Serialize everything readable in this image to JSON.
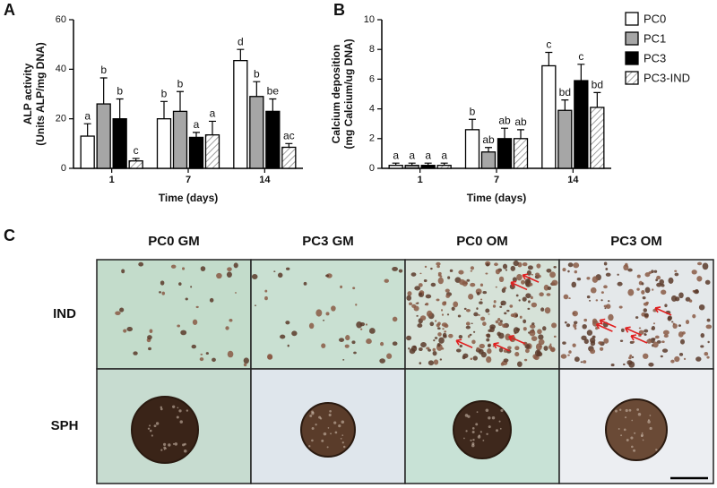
{
  "chart_data": [
    {
      "type": "bar",
      "panel_label": "A",
      "ylabel": [
        "ALP activity",
        "(Units ALP/mg DNA)"
      ],
      "xlabel": "Time (days)",
      "categories": [
        "1",
        "7",
        "14"
      ],
      "ylim": [
        0,
        60
      ],
      "yticks": [
        0,
        20,
        40,
        60
      ],
      "series": [
        {
          "color": "#ffffff",
          "values": [
            13,
            20,
            43.5
          ],
          "errors": [
            5,
            7,
            4.5
          ],
          "labels": [
            "a",
            "b",
            "d"
          ]
        },
        {
          "color": "#a6a6a6",
          "values": [
            26,
            23,
            29
          ],
          "errors": [
            10.5,
            8,
            6
          ],
          "labels": [
            "b",
            "b",
            "b"
          ]
        },
        {
          "color": "#000000",
          "values": [
            20,
            12.5,
            23
          ],
          "errors": [
            8,
            2,
            5
          ],
          "labels": [
            "b",
            "a",
            "be"
          ]
        },
        {
          "color": "#ffffff",
          "hatch": true,
          "values": [
            3,
            13.5,
            8.5
          ],
          "errors": [
            1,
            5.5,
            1.5
          ],
          "labels": [
            "c",
            "a",
            "ac"
          ]
        }
      ]
    },
    {
      "type": "bar",
      "panel_label": "B",
      "ylabel": [
        "Calcium deposition",
        "(mg Calcium/ug DNA)"
      ],
      "xlabel": "Time (days)",
      "categories": [
        "1",
        "7",
        "14"
      ],
      "ylim": [
        0,
        10
      ],
      "yticks": [
        0,
        2,
        4,
        6,
        8,
        10
      ],
      "legend": "right",
      "series": [
        {
          "name": "PC0",
          "color": "#ffffff",
          "values": [
            0.2,
            2.6,
            6.9
          ],
          "errors": [
            0.15,
            0.7,
            0.9
          ],
          "labels": [
            "a",
            "b",
            "c"
          ]
        },
        {
          "name": "PC1",
          "color": "#a6a6a6",
          "values": [
            0.2,
            1.1,
            3.9
          ],
          "errors": [
            0.15,
            0.3,
            0.7
          ],
          "labels": [
            "a",
            "ab",
            "bd"
          ]
        },
        {
          "name": "PC3",
          "color": "#000000",
          "values": [
            0.2,
            2.0,
            5.9
          ],
          "errors": [
            0.15,
            0.7,
            1.1
          ],
          "labels": [
            "a",
            "ab",
            "c"
          ]
        },
        {
          "name": "PC3-IND",
          "color": "#ffffff",
          "hatch": true,
          "values": [
            0.2,
            2.0,
            4.1
          ],
          "errors": [
            0.15,
            0.6,
            1.0
          ],
          "labels": [
            "a",
            "ab",
            "bd"
          ]
        }
      ]
    }
  ],
  "panel_c": {
    "label": "C",
    "columns": [
      "PC0 GM",
      "PC3 GM",
      "PC0 OM",
      "PC3 OM"
    ],
    "rows": [
      "IND",
      "SPH"
    ]
  }
}
